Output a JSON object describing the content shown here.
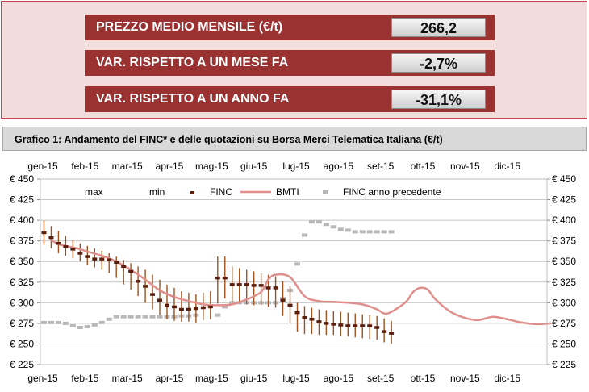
{
  "kpis": [
    {
      "label": "PREZZO MEDIO MENSILE (€/t)",
      "value": "266,2"
    },
    {
      "label": "VAR. RISPETTO A UN MESE FA",
      "value": "-2,7%"
    },
    {
      "label": "VAR. RISPETTO A UN ANNO FA",
      "value": "-31,1%"
    }
  ],
  "chart_header": {
    "title": "Grafico 1:  Andamento del FINC* e delle quotazioni su Borsa Merci Telematica Italiana (€/t)"
  },
  "colors": {
    "panel_bg": "#f3dcdc",
    "panel_border": "#c24a4a",
    "kpi_bg": "#9b3232",
    "range_bar": "#a0521e",
    "finc": "#5a1e0e",
    "bmti": "#e0908c",
    "finc_prev": "#b8b8b8",
    "grid": "#c8c8c8"
  },
  "chart_data": {
    "type": "line",
    "title": "Andamento del FINC* e delle quotazioni su Borsa Merci Telematica Italiana (€/t)",
    "ylim": [
      225,
      450
    ],
    "ystep": 25,
    "ytick_labels": [
      "€ 225",
      "€ 250",
      "€ 275",
      "€ 300",
      "€ 325",
      "€ 350",
      "€ 375",
      "€ 400",
      "€ 425",
      "€ 450"
    ],
    "month_labels": [
      "gen-15",
      "feb-15",
      "mar-15",
      "apr-15",
      "mag-15",
      "giu-15",
      "lug-15",
      "ago-15",
      "set-15",
      "ott-15",
      "nov-15",
      "dic-15"
    ],
    "grid": "horizontal",
    "legend": {
      "position": "top",
      "entries": [
        "max",
        "min",
        "FINC",
        "BMTI",
        "FINC anno precedente"
      ]
    },
    "series": {
      "max": [
        400,
        393,
        387,
        381,
        376,
        372,
        369,
        366,
        363,
        360,
        356,
        352,
        348,
        344,
        340,
        334,
        328,
        322,
        318,
        314,
        312,
        310,
        312,
        314,
        356,
        356,
        344,
        342,
        340,
        338,
        336,
        334,
        332,
        326,
        320,
        300,
        296,
        294,
        292,
        291,
        290,
        289,
        288,
        287,
        286,
        285,
        284,
        281,
        278
      ],
      "min": [
        370,
        366,
        360,
        357,
        354,
        350,
        346,
        343,
        340,
        336,
        330,
        322,
        316,
        308,
        300,
        292,
        285,
        280,
        278,
        277,
        277,
        276,
        279,
        280,
        299,
        305,
        300,
        299,
        298,
        297,
        297,
        295,
        294,
        284,
        275,
        265,
        262,
        262,
        261,
        261,
        261,
        260,
        259,
        258,
        257,
        256,
        255,
        252,
        250
      ],
      "finc": [
        385,
        379,
        372,
        368,
        365,
        360,
        356,
        353,
        353,
        352,
        349,
        344,
        338,
        326,
        320,
        310,
        303,
        297,
        295,
        292,
        292,
        293,
        294,
        295,
        330,
        330,
        322,
        322,
        322,
        321,
        321,
        318,
        318,
        303,
        297,
        288,
        282,
        280,
        277,
        275,
        274,
        273,
        272,
        272,
        272,
        272,
        270,
        265,
        263
      ],
      "finc_prev": [
        276,
        276,
        276,
        275,
        272,
        270,
        271,
        273,
        276,
        280,
        283,
        283,
        283,
        283,
        283,
        283,
        283,
        283,
        283,
        284,
        284,
        285,
        null,
        null,
        285,
        295,
        300,
        300,
        300,
        300,
        300,
        300,
        300,
        305,
        315,
        347,
        382,
        398,
        398,
        395,
        392,
        389,
        388,
        386,
        386,
        386,
        386,
        386,
        386
      ],
      "bmti_points": [
        [
          1,
          376
        ],
        [
          2,
          371
        ],
        [
          3,
          369
        ],
        [
          4,
          367
        ],
        [
          5,
          365
        ],
        [
          6,
          362
        ],
        [
          8,
          357
        ],
        [
          10,
          350
        ],
        [
          12,
          340
        ],
        [
          14,
          328
        ],
        [
          16,
          315
        ],
        [
          18,
          307
        ],
        [
          20,
          302
        ],
        [
          22,
          298
        ],
        [
          24,
          297
        ],
        [
          26,
          298
        ],
        [
          28,
          304
        ],
        [
          30,
          313
        ],
        [
          31,
          328
        ],
        [
          32,
          334
        ],
        [
          34,
          331
        ],
        [
          36,
          308
        ],
        [
          38,
          302
        ],
        [
          40,
          301
        ],
        [
          42,
          300
        ],
        [
          44,
          298
        ],
        [
          46,
          292
        ],
        [
          47,
          287
        ],
        [
          48,
          289
        ],
        [
          50,
          301
        ],
        [
          51,
          313
        ],
        [
          52,
          318
        ],
        [
          53,
          316
        ],
        [
          54,
          305
        ],
        [
          56,
          290
        ],
        [
          58,
          282
        ],
        [
          60,
          279
        ],
        [
          62,
          283
        ],
        [
          64,
          280
        ],
        [
          66,
          276
        ],
        [
          68,
          274
        ],
        [
          70,
          275
        ]
      ]
    }
  }
}
